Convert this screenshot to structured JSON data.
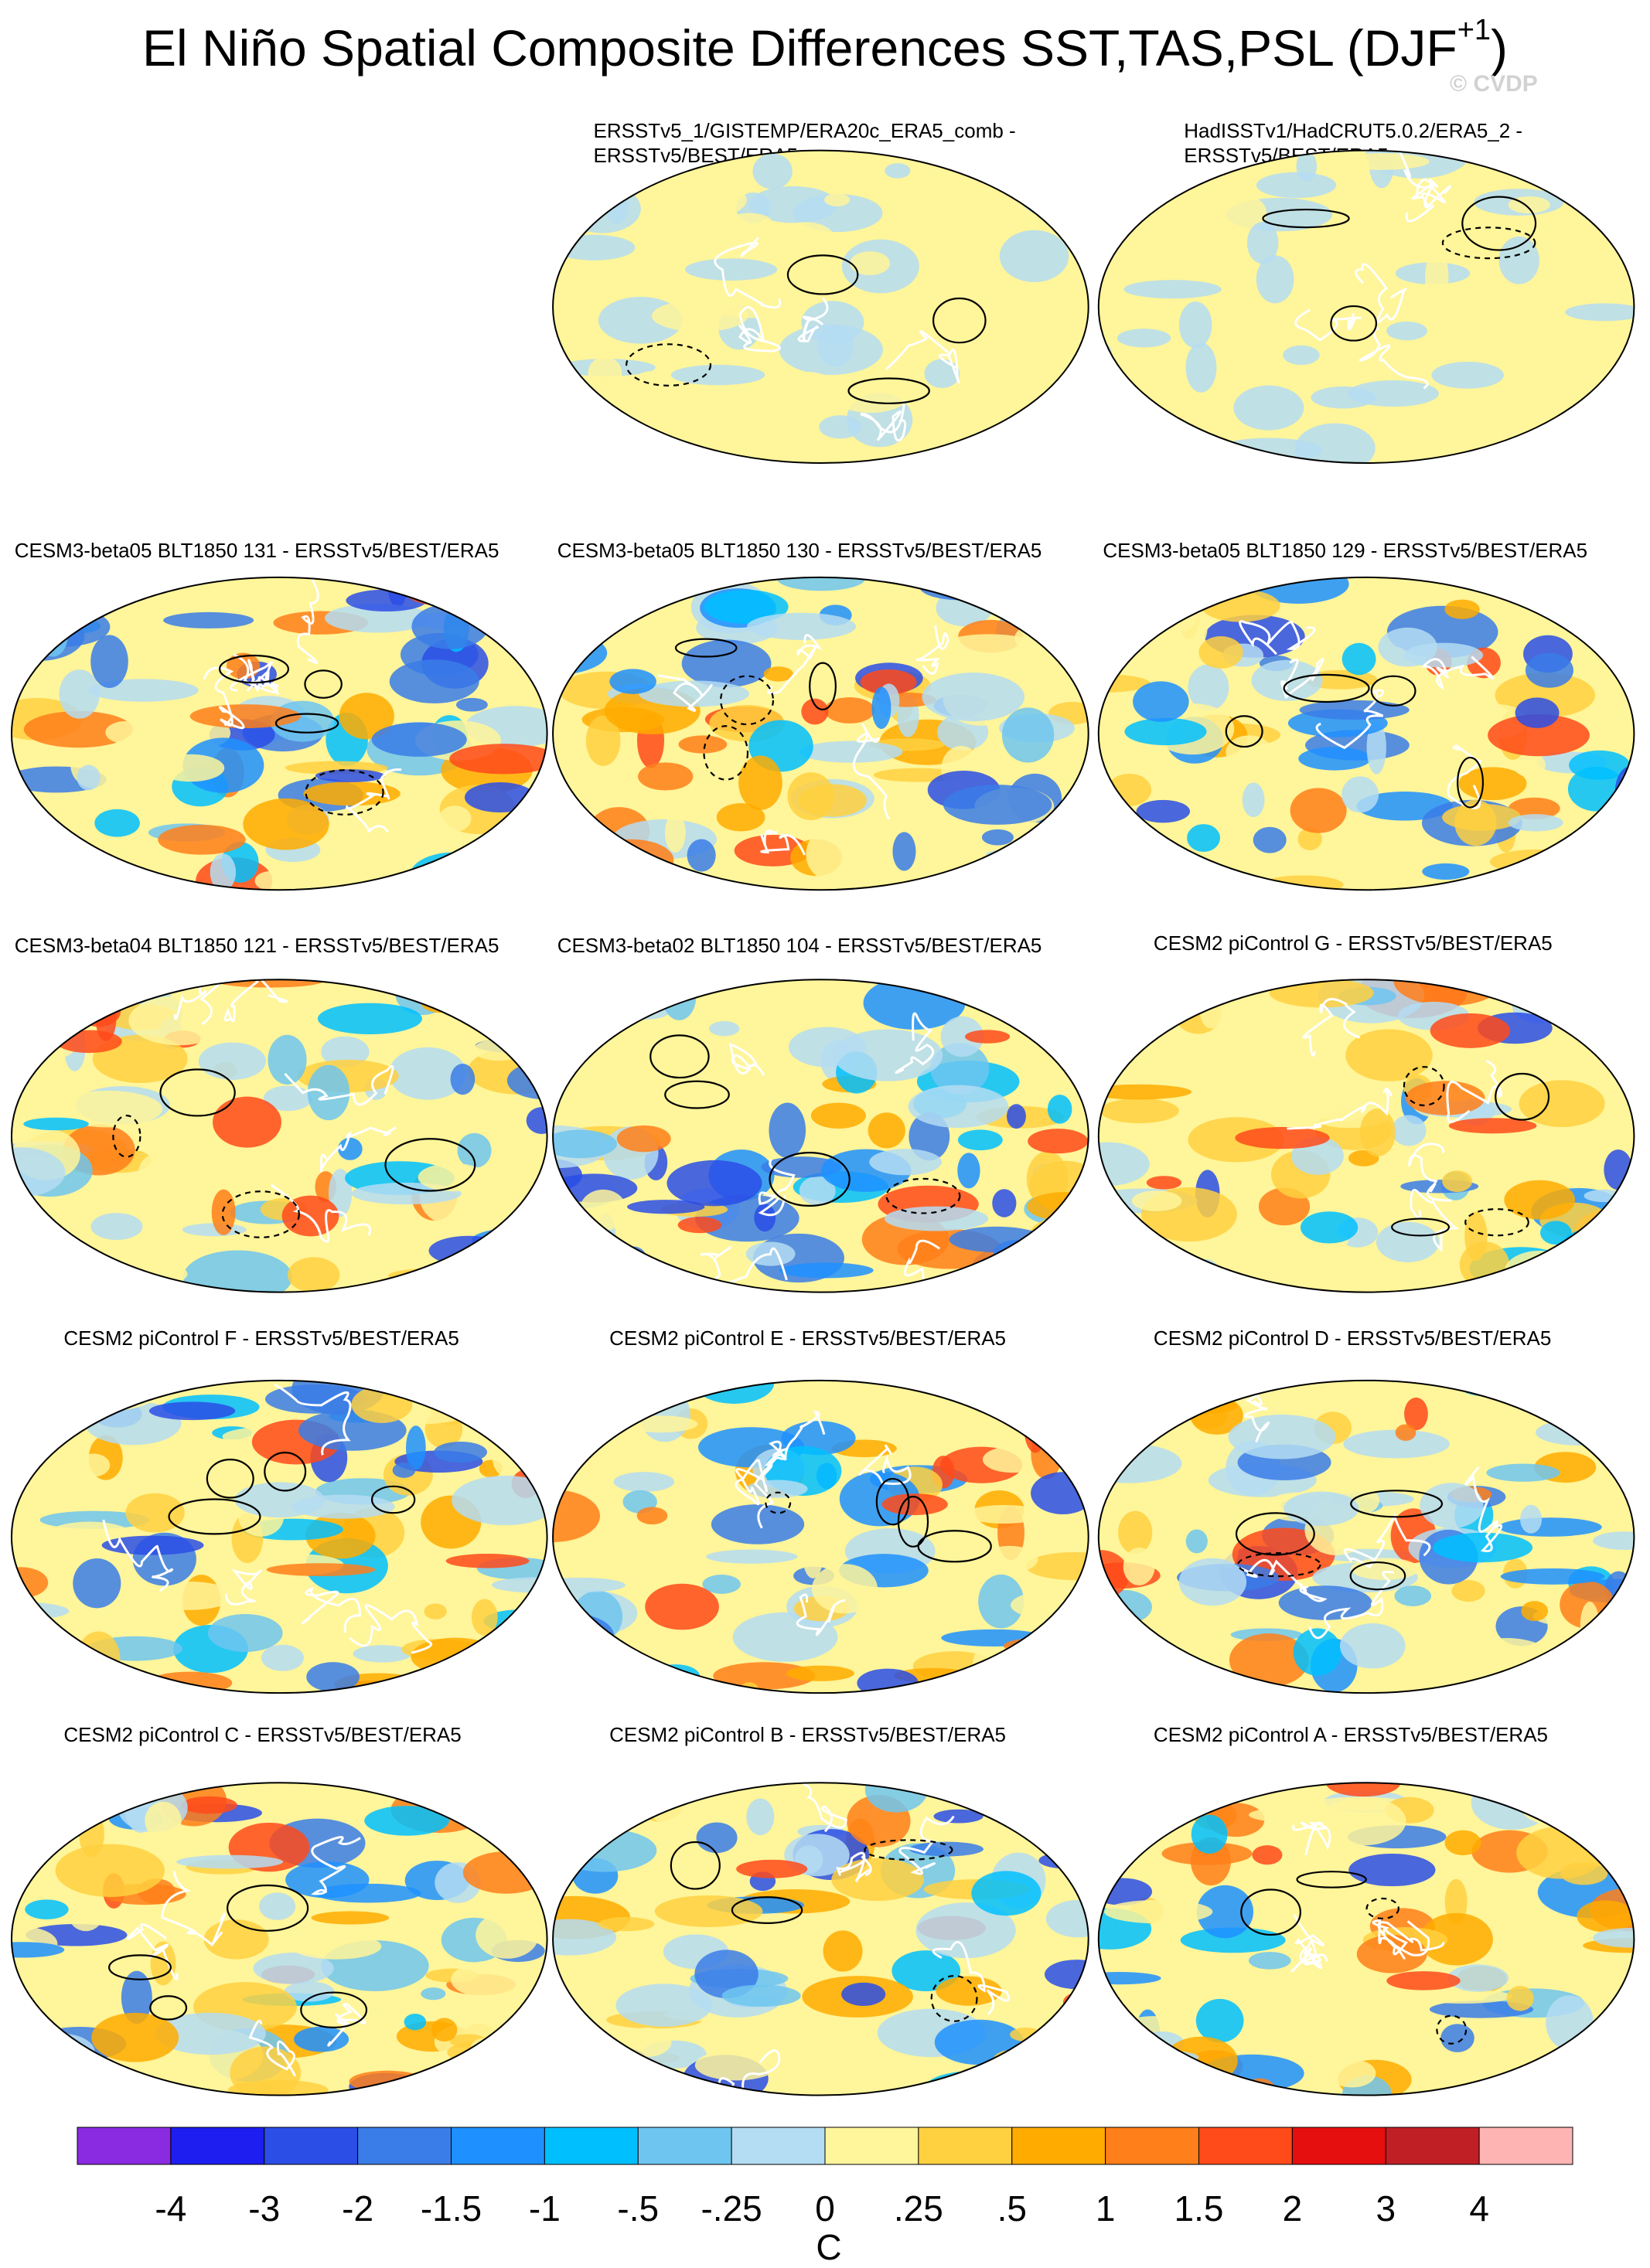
{
  "title": {
    "main": "El Niño Spatial Composite Differences SST,TAS,PSL (DJF",
    "superscript": "+1",
    "close": ")"
  },
  "watermark": "© CVDP",
  "panels": [
    {
      "id": "p1",
      "title_lines": [
        "ERSSTv5_1/GISTEMP/ERA20c_ERA5_comb -",
        "ERSSTv5/BEST/ERA5"
      ]
    },
    {
      "id": "p2",
      "title_lines": [
        "HadISSTv1/HadCRUT5.0.2/ERA5_2 -",
        "ERSSTv5/BEST/ERA5"
      ]
    },
    {
      "id": "p3",
      "title_lines": [
        "CESM3-beta05 BLT1850 131 - ERSSTv5/BEST/ERA5"
      ]
    },
    {
      "id": "p4",
      "title_lines": [
        "CESM3-beta05 BLT1850 130 - ERSSTv5/BEST/ERA5"
      ]
    },
    {
      "id": "p5",
      "title_lines": [
        "CESM3-beta05 BLT1850 129 - ERSSTv5/BEST/ERA5"
      ]
    },
    {
      "id": "p6",
      "title_lines": [
        "CESM3-beta04 BLT1850 121 - ERSSTv5/BEST/ERA5"
      ]
    },
    {
      "id": "p7",
      "title_lines": [
        "CESM3-beta02 BLT1850 104 - ERSSTv5/BEST/ERA5"
      ]
    },
    {
      "id": "p8",
      "title_lines": [
        "CESM2 piControl G - ERSSTv5/BEST/ERA5"
      ]
    },
    {
      "id": "p9",
      "title_lines": [
        "CESM2 piControl F - ERSSTv5/BEST/ERA5"
      ]
    },
    {
      "id": "p10",
      "title_lines": [
        "CESM2 piControl E - ERSSTv5/BEST/ERA5"
      ]
    },
    {
      "id": "p11",
      "title_lines": [
        "CESM2 piControl D - ERSSTv5/BEST/ERA5"
      ]
    },
    {
      "id": "p12",
      "title_lines": [
        "CESM2 piControl C - ERSSTv5/BEST/ERA5"
      ]
    },
    {
      "id": "p13",
      "title_lines": [
        "CESM2 piControl B - ERSSTv5/BEST/ERA5"
      ]
    },
    {
      "id": "p14",
      "title_lines": [
        "CESM2 piControl A - ERSSTv5/BEST/ERA5"
      ]
    }
  ],
  "colorbar": {
    "units": "C",
    "tick_labels": [
      "-4",
      "-3",
      "-2",
      "-1.5",
      "-1",
      "-.5",
      "-.25",
      "0",
      ".25",
      ".5",
      "1",
      "1.5",
      "2",
      "3",
      "4"
    ],
    "colors": [
      "#8a2be2",
      "#1e1ef0",
      "#2a4ee6",
      "#3a7de8",
      "#1e90ff",
      "#00bfff",
      "#6ec6f0",
      "#b4dcf2",
      "#fff59a",
      "#ffd040",
      "#ffab00",
      "#ff7f1a",
      "#ff4a1a",
      "#e60f0f",
      "#c01f26",
      "#ffb4b4"
    ]
  },
  "chart_data": {
    "type": "heatmap",
    "subtype": "global map composite-difference panels (filled contours: temperature anomaly; line contours: sea level pressure)",
    "panel_count": 14,
    "colorbar_levels": [
      -4,
      -3,
      -2,
      -1.5,
      -1,
      -0.5,
      -0.25,
      0,
      0.25,
      0.5,
      1,
      1.5,
      2,
      3,
      4
    ],
    "units": "C"
  }
}
